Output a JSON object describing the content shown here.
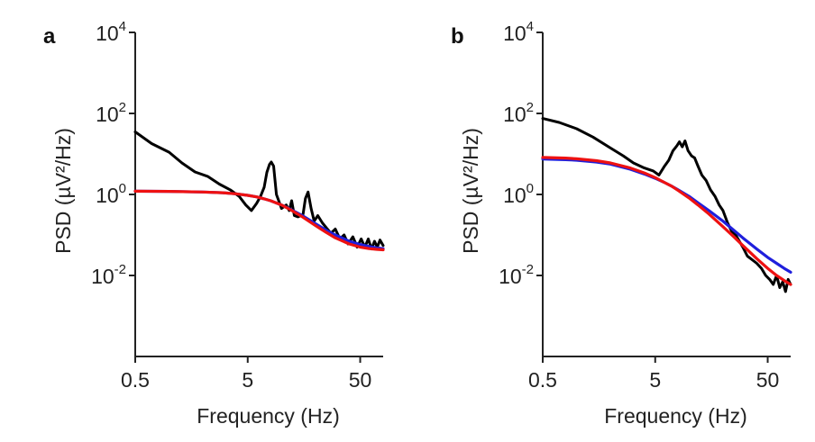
{
  "chart_data": [
    {
      "type": "line",
      "panel_label": "a",
      "xlabel": "Frequency (Hz)",
      "ylabel": "PSD (µV²/Hz)",
      "xscale": "log",
      "yscale": "log",
      "xlim": [
        0.5,
        80
      ],
      "ylim": [
        0.0001,
        10000
      ],
      "xticks": [
        0.5,
        5,
        50
      ],
      "xtick_labels": [
        "0.5",
        "5",
        "50"
      ],
      "yticks": [
        10000,
        100,
        1,
        0.01
      ],
      "ytick_labels": [
        {
          "base": "10",
          "exp": "4"
        },
        {
          "base": "10",
          "exp": "2"
        },
        {
          "base": "10",
          "exp": "0"
        },
        {
          "base": "10",
          "exp": "-2"
        }
      ],
      "grid": false,
      "legend": "none",
      "series": [
        {
          "color": "#000000",
          "x": [
            0.5,
            0.7,
            1.0,
            1.3,
            1.7,
            2.2,
            2.8,
            3.5,
            4.2,
            4.8,
            5.4,
            6.0,
            6.5,
            7.0,
            7.4,
            7.8,
            8.1,
            8.5,
            9.0,
            10.0,
            11.0,
            11.7,
            12.3,
            13.0,
            14.0,
            15.5,
            16.3,
            17.2,
            18.3,
            19.5,
            21.0,
            23.0,
            25.0,
            27.5,
            30.0,
            33.0,
            36.0,
            39.0,
            43.0,
            47.0,
            51.0,
            55.0,
            59.0,
            63.0,
            67.0,
            71.0,
            75.0,
            80.0
          ],
          "y": [
            35,
            18,
            11,
            6,
            3.6,
            2.8,
            1.8,
            1.3,
            0.9,
            0.55,
            0.4,
            0.6,
            0.9,
            1.5,
            3.5,
            5.5,
            6.3,
            5.0,
            1.0,
            0.45,
            0.55,
            0.4,
            0.7,
            0.3,
            0.28,
            0.32,
            0.8,
            1.15,
            0.45,
            0.22,
            0.3,
            0.2,
            0.15,
            0.11,
            0.14,
            0.08,
            0.1,
            0.06,
            0.09,
            0.05,
            0.08,
            0.05,
            0.08,
            0.045,
            0.07,
            0.05,
            0.075,
            0.055
          ]
        },
        {
          "color": "#1f1fdc",
          "x": [
            0.5,
            1.0,
            2.0,
            3.0,
            4.0,
            5.0,
            6.0,
            7.0,
            8.0,
            10.0,
            12.0,
            15.0,
            20.0,
            25.0,
            30.0,
            40.0,
            50.0,
            60.0,
            70.0,
            80.0
          ],
          "y": [
            1.2,
            1.19,
            1.15,
            1.1,
            1.03,
            0.95,
            0.87,
            0.78,
            0.7,
            0.55,
            0.43,
            0.31,
            0.19,
            0.13,
            0.1,
            0.07,
            0.058,
            0.052,
            0.048,
            0.046
          ]
        },
        {
          "color": "#ee1111",
          "x": [
            0.5,
            1.0,
            2.0,
            3.0,
            4.0,
            5.0,
            6.0,
            7.0,
            8.0,
            10.0,
            12.0,
            15.0,
            20.0,
            25.0,
            30.0,
            40.0,
            50.0,
            60.0,
            70.0,
            80.0
          ],
          "y": [
            1.2,
            1.19,
            1.15,
            1.1,
            1.03,
            0.95,
            0.87,
            0.78,
            0.7,
            0.55,
            0.42,
            0.29,
            0.17,
            0.115,
            0.085,
            0.06,
            0.05,
            0.046,
            0.044,
            0.043
          ]
        }
      ]
    },
    {
      "type": "line",
      "panel_label": "b",
      "xlabel": "Frequency (Hz)",
      "ylabel": "PSD (µV²/Hz)",
      "xscale": "log",
      "yscale": "log",
      "xlim": [
        0.5,
        80
      ],
      "ylim": [
        0.0001,
        10000
      ],
      "xticks": [
        0.5,
        5,
        50
      ],
      "xtick_labels": [
        "0.5",
        "5",
        "50"
      ],
      "yticks": [
        10000,
        100,
        1,
        0.01
      ],
      "ytick_labels": [
        {
          "base": "10",
          "exp": "4"
        },
        {
          "base": "10",
          "exp": "2"
        },
        {
          "base": "10",
          "exp": "0"
        },
        {
          "base": "10",
          "exp": "-2"
        }
      ],
      "grid": false,
      "legend": "none",
      "series": [
        {
          "color": "#000000",
          "x": [
            0.5,
            0.7,
            1.0,
            1.4,
            2.0,
            2.6,
            3.2,
            4.0,
            4.8,
            5.4,
            6.0,
            6.6,
            7.2,
            7.8,
            8.2,
            8.7,
            9.2,
            9.8,
            10.5,
            11.2,
            12.0,
            13.0,
            14.2,
            15.5,
            17.0,
            18.5,
            20.0,
            22.0,
            24.0,
            26.0,
            28.0,
            30.0,
            33.0,
            36.0,
            40.0,
            44.0,
            48.0,
            52.0,
            56.0,
            60.0,
            64.0,
            68.0,
            72.0,
            76.0,
            80.0
          ],
          "y": [
            75,
            60,
            42,
            26,
            14,
            9,
            6,
            4.5,
            3.8,
            3.0,
            4.8,
            7,
            12,
            16,
            20,
            15,
            21,
            12,
            9,
            8,
            5,
            3,
            2.2,
            1.3,
            0.9,
            0.55,
            0.4,
            0.2,
            0.12,
            0.1,
            0.07,
            0.05,
            0.03,
            0.025,
            0.02,
            0.015,
            0.01,
            0.008,
            0.006,
            0.01,
            0.005,
            0.007,
            0.004,
            0.008,
            0.006
          ]
        },
        {
          "color": "#1f1fdc",
          "x": [
            0.5,
            0.8,
            1.0,
            1.5,
            2.0,
            3.0,
            4.0,
            5.0,
            6.0,
            7.0,
            8.0,
            10.0,
            12.0,
            15.0,
            20.0,
            25.0,
            30.0,
            40.0,
            50.0,
            60.0,
            70.0,
            80.0
          ],
          "y": [
            7.5,
            7.2,
            7.0,
            6.3,
            5.6,
            4.2,
            3.2,
            2.5,
            2.0,
            1.6,
            1.3,
            0.9,
            0.62,
            0.4,
            0.22,
            0.13,
            0.085,
            0.045,
            0.028,
            0.02,
            0.015,
            0.012
          ]
        },
        {
          "color": "#ee1111",
          "x": [
            0.5,
            0.8,
            1.0,
            1.5,
            2.0,
            3.0,
            4.0,
            5.0,
            6.0,
            7.0,
            8.0,
            10.0,
            12.0,
            15.0,
            20.0,
            25.0,
            30.0,
            40.0,
            50.0,
            60.0,
            70.0,
            80.0
          ],
          "y": [
            8.2,
            7.9,
            7.6,
            6.8,
            6.0,
            4.5,
            3.4,
            2.6,
            2.0,
            1.6,
            1.25,
            0.82,
            0.55,
            0.33,
            0.16,
            0.09,
            0.055,
            0.026,
            0.015,
            0.01,
            0.0075,
            0.006
          ]
        }
      ]
    }
  ]
}
